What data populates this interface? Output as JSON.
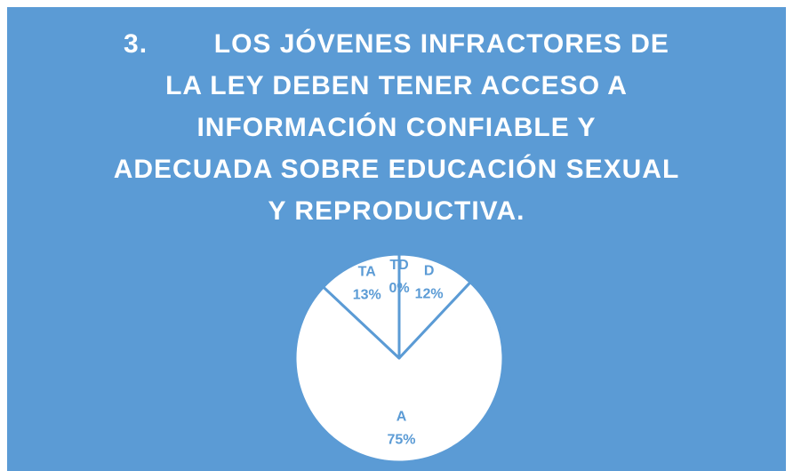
{
  "chart_data": {
    "type": "pie",
    "title": "3.        LOS JÓVENES INFRACTORES DE\nLA LEY DEBEN TENER ACCESO A\nINFORMACIÓN CONFIABLE Y\nADECUADA SOBRE EDUCACIÓN SEXUAL\nY REPRODUCTIVA.",
    "categories": [
      "TD",
      "D",
      "A",
      "TA"
    ],
    "values": [
      0,
      12,
      75,
      13
    ],
    "value_labels": [
      "0%",
      "12%",
      "75%",
      "13%"
    ],
    "color": "#ffffff"
  }
}
